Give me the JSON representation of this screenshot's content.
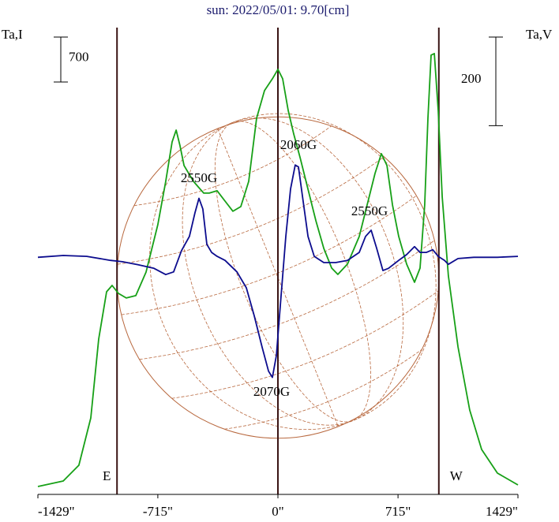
{
  "chart_data": {
    "type": "line",
    "title": "sun: 2022/05/01: 9.70[cm]",
    "ylabel": "Ta,I",
    "y2label": "Ta,V",
    "xlim": [
      -1429,
      1429
    ],
    "xticks": [
      {
        "value": -1429,
        "label": "-1429\""
      },
      {
        "value": -715,
        "label": "-715\""
      },
      {
        "value": 0,
        "label": "0\""
      },
      {
        "value": 715,
        "label": "715\""
      },
      {
        "value": 1429,
        "label": "1429\""
      }
    ],
    "ylim": [
      0,
      7330
    ],
    "y2lim": [
      -531,
      531
    ],
    "scale_bar": 700,
    "scale_bar2": 200,
    "markers": [
      -958,
      0,
      958
    ],
    "limb_labels": [
      "E",
      "W"
    ],
    "marker_color": "#3a1414",
    "disk_color": "#b8683e",
    "annotations": [
      "2550G",
      "2060G",
      "2550G",
      "2070G"
    ],
    "series": [
      {
        "name": "I",
        "color": "#17a017",
        "x": [
          -1429,
          -1278,
          -1185,
          -1114,
          -1067,
          -1020,
          -987,
          -950,
          -903,
          -846,
          -785,
          -715,
          -668,
          -630,
          -606,
          -583,
          -559,
          -503,
          -442,
          -409,
          -362,
          -315,
          -268,
          -221,
          -174,
          -127,
          -80,
          -33,
          0,
          28,
          61,
          94,
          132,
          179,
          226,
          273,
          320,
          357,
          414,
          484,
          531,
          578,
          616,
          649,
          682,
          719,
          766,
          813,
          846,
          874,
          893,
          912,
          931,
          954,
          978,
          1015,
          1072,
          1142,
          1213,
          1307,
          1429
        ],
        "values": [
          123,
          209,
          454,
          1191,
          2419,
          3156,
          3254,
          3131,
          3058,
          3095,
          3463,
          4200,
          4875,
          5489,
          5673,
          5428,
          5121,
          4875,
          4691,
          4691,
          4728,
          4568,
          4409,
          4482,
          4875,
          5858,
          6287,
          6472,
          6619,
          6472,
          5980,
          5612,
          5244,
          4752,
          4261,
          3831,
          3524,
          3426,
          3586,
          4016,
          4507,
          4998,
          5305,
          5121,
          4507,
          4016,
          3586,
          3303,
          3524,
          4507,
          5858,
          6840,
          6865,
          5980,
          4630,
          3402,
          2296,
          1314,
          700,
          332,
          147
        ]
      },
      {
        "name": "V",
        "color": "#0c0c8e",
        "axis": "y2",
        "x": [
          -1429,
          -1278,
          -1138,
          -997,
          -926,
          -832,
          -738,
          -668,
          -621,
          -574,
          -527,
          -494,
          -470,
          -447,
          -423,
          -395,
          -362,
          -315,
          -244,
          -188,
          -141,
          -94,
          -56,
          -33,
          -9,
          19,
          47,
          75,
          103,
          122,
          150,
          179,
          216,
          273,
          343,
          414,
          484,
          522,
          555,
          588,
          625,
          658,
          719,
          766,
          813,
          846,
          884,
          922,
          954,
          992,
          1015,
          1072,
          1166,
          1307,
          1429
        ],
        "values": [
          4,
          8,
          6,
          -3,
          -6,
          -13,
          -21,
          -35,
          -29,
          19,
          51,
          104,
          137,
          113,
          33,
          15,
          6,
          -3,
          -29,
          -65,
          -128,
          -199,
          -253,
          -267,
          -217,
          -83,
          51,
          158,
          212,
          208,
          131,
          51,
          6,
          -8,
          -8,
          -3,
          15,
          51,
          65,
          24,
          -26,
          -21,
          -3,
          10,
          28,
          15,
          15,
          21,
          6,
          -3,
          -12,
          1,
          4,
          4,
          6
        ]
      }
    ]
  }
}
